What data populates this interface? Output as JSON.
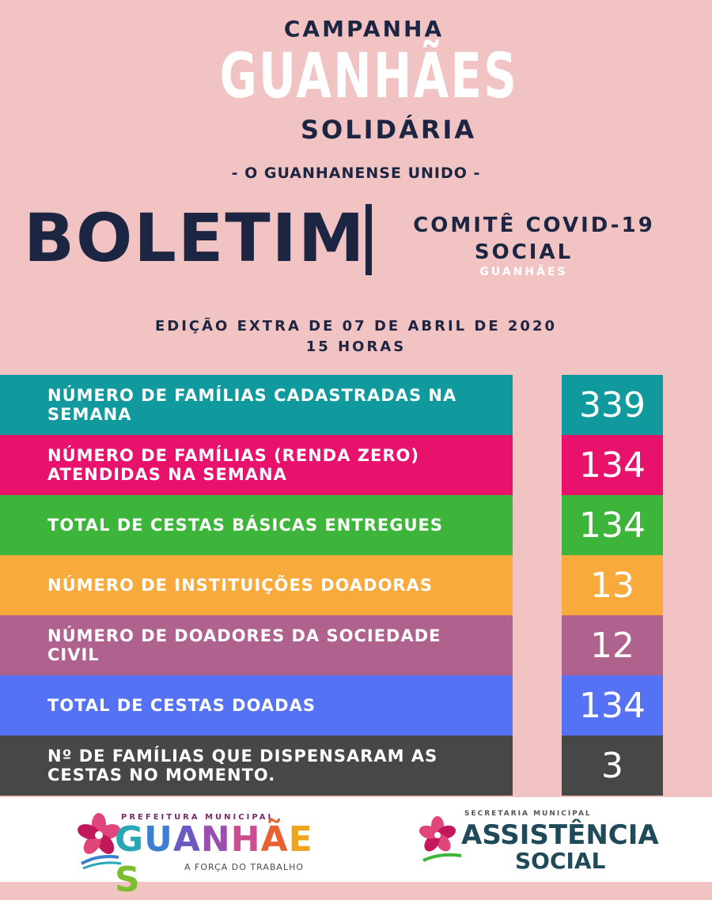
{
  "header": {
    "campanha": "CAMPANHA",
    "city": "GUANHÃES",
    "solidaria": "SOLIDÁRIA",
    "tagline": "- O GUANHANENSE UNIDO -"
  },
  "boletim": {
    "title": "BOLETIM",
    "committee_line1": "COMITÊ COVID-19",
    "committee_line2": "SOCIAL",
    "committee_line3": "GUANHÃES"
  },
  "edition": {
    "line1": "EDIÇÃO EXTRA DE 07 DE ABRIL DE 2020",
    "line2": "15 HORAS"
  },
  "rows": [
    {
      "label": "NÚMERO DE FAMÍLIAS CADASTRADAS NA SEMANA",
      "value": "339",
      "color": "#109a9e"
    },
    {
      "label": "NÚMERO DE FAMÍLIAS (RENDA ZERO) ATENDIDAS NA SEMANA",
      "value": "134",
      "color": "#e8116c"
    },
    {
      "label": "TOTAL DE CESTAS BÁSICAS ENTREGUES",
      "value": "134",
      "color": "#3cb53a"
    },
    {
      "label": "NÚMERO DE INSTITUIÇÕES DOADORAS",
      "value": "13",
      "color": "#f9aa3c"
    },
    {
      "label": "NÚMERO DE DOADORES DA SOCIEDADE CIVIL",
      "value": "12",
      "color": "#b0628f"
    },
    {
      "label": "TOTAL DE CESTAS DOADAS",
      "value": "134",
      "color": "#5572f5"
    },
    {
      "label": "Nº DE FAMÍLIAS QUE DISPENSARAM AS CESTAS NO MOMENTO.",
      "value": "3",
      "color": "#474747"
    }
  ],
  "footer": {
    "logo1": {
      "top": "PREFEITURA MUNICIPAL",
      "name_letters": [
        "G",
        "U",
        "A",
        "N",
        "H",
        "Ã",
        "E",
        "S"
      ],
      "name_colors": [
        "#2aa7b6",
        "#3b7fd1",
        "#6a5bc2",
        "#9a4fb0",
        "#c94f8f",
        "#e8622f",
        "#f0a51e",
        "#7bbf2f"
      ],
      "tagline": "A FORÇA DO TRABALHO"
    },
    "logo2": {
      "top": "SECRETARIA MUNICIPAL",
      "name": "ASSISTÊNCIA",
      "sub": "SOCIAL"
    }
  }
}
